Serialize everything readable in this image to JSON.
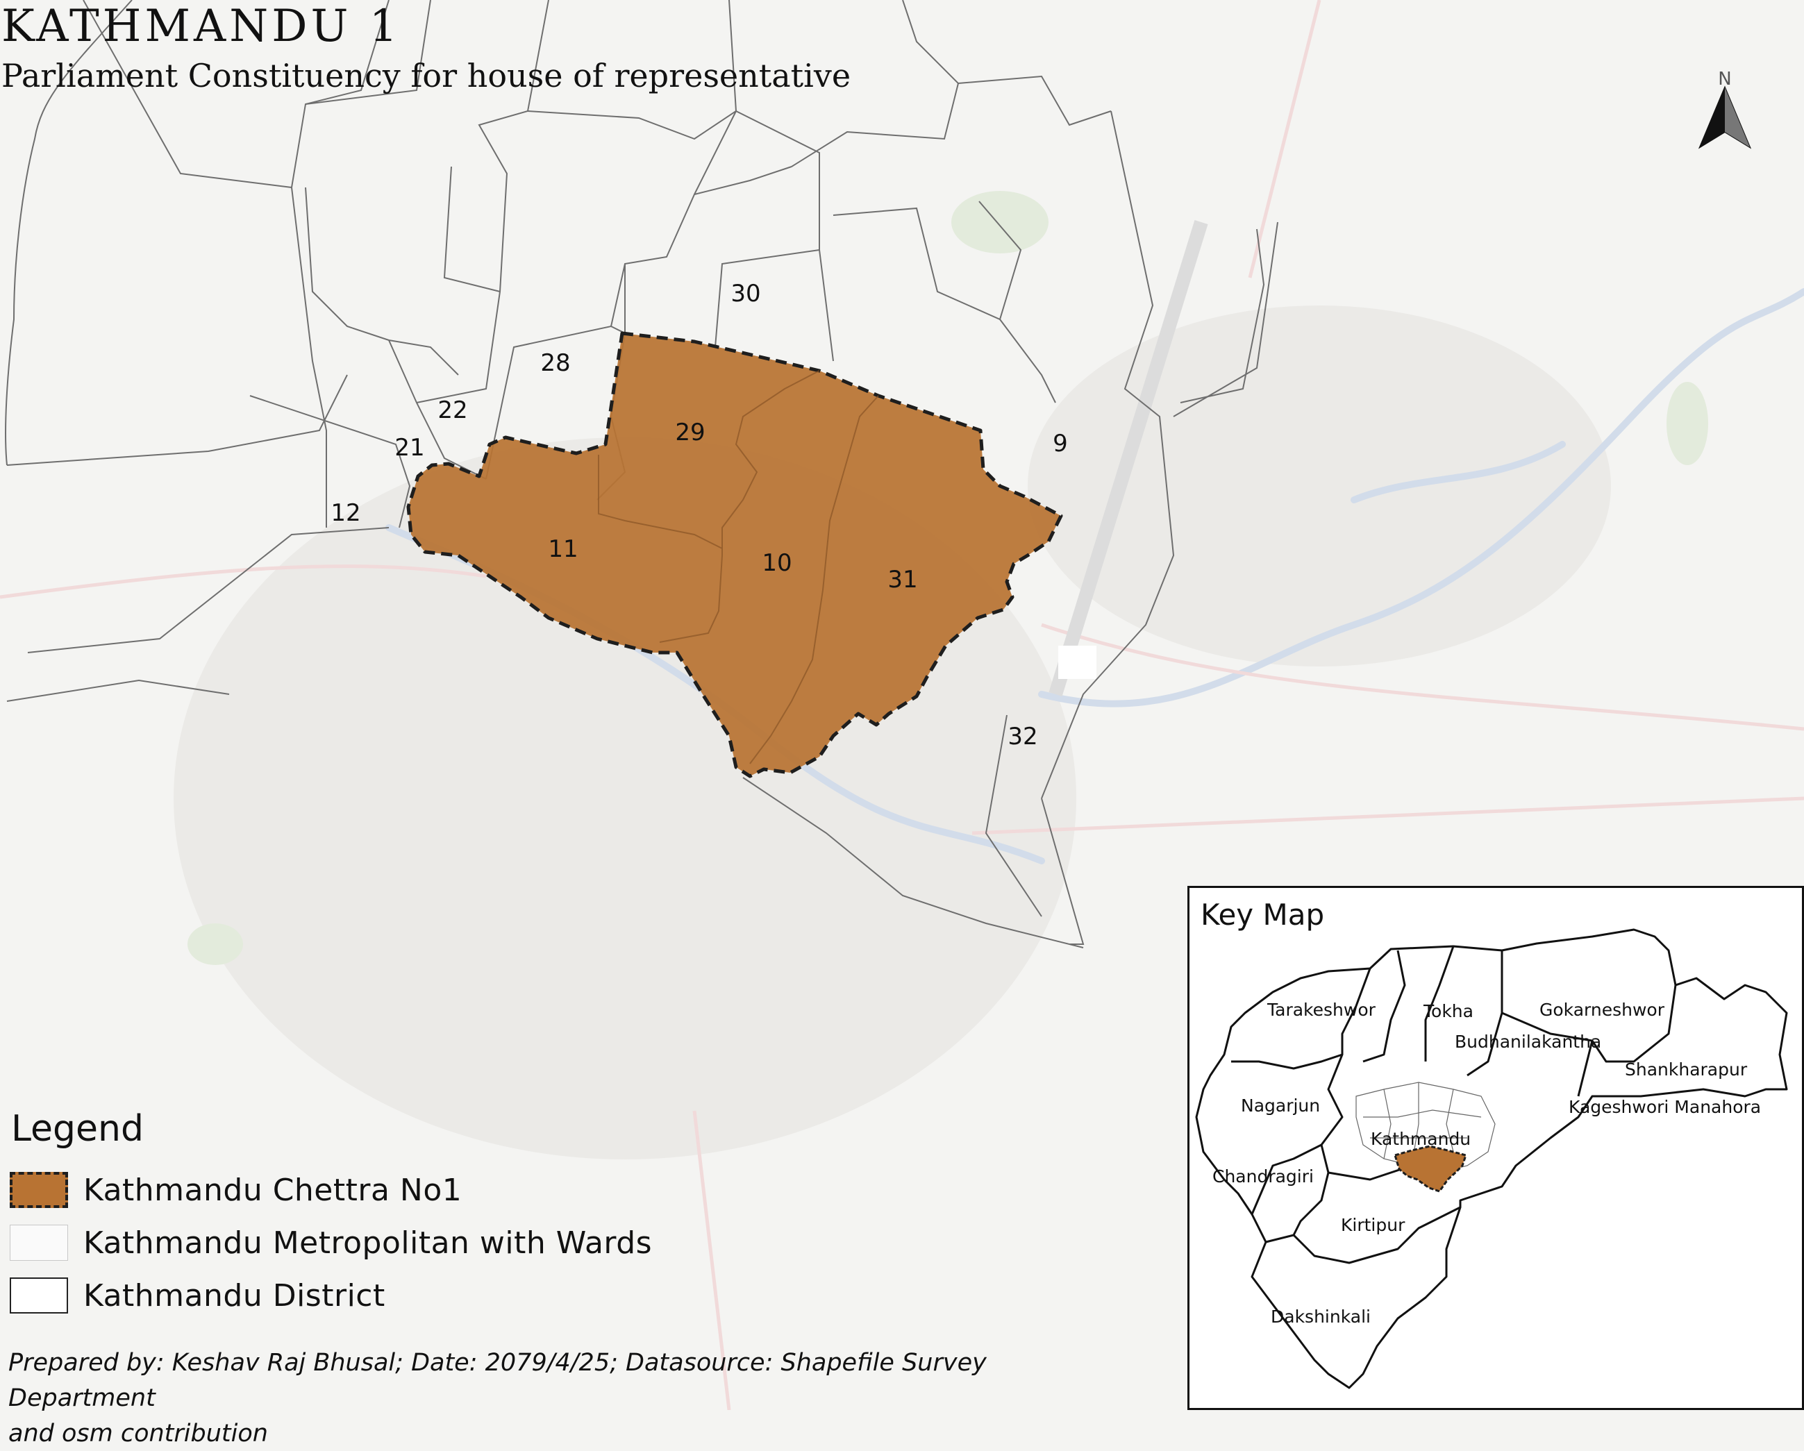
{
  "map": {
    "title": "KATHMANDU 1",
    "subtitle": "Parliament Constituency for house of representative",
    "north_label": "N",
    "colors": {
      "constituency_fill": "#b87333",
      "constituency_border": "#1e1e1e",
      "ward_line": "#6e6e6e",
      "basemap": "#f4f4f2"
    },
    "wards": [
      "30",
      "28",
      "22",
      "21",
      "12",
      "29",
      "9",
      "11",
      "10",
      "31",
      "32"
    ],
    "highlighted_wards": [
      "29",
      "11",
      "10",
      "31"
    ]
  },
  "legend": {
    "title": "Legend",
    "items": [
      {
        "label": "Kathmandu Chettra No1"
      },
      {
        "label": "Kathmandu Metropolitan with Wards"
      },
      {
        "label": "Kathmandu District"
      }
    ]
  },
  "keymap": {
    "title": "Key Map",
    "places": [
      "Tarakeshwor",
      "Tokha",
      "Gokarneshwor",
      "Budhanilakantha",
      "Shankharapur",
      "Nagarjun",
      "Kageshwori Manahora",
      "Kathmandu",
      "Chandragiri",
      "Kirtipur",
      "Dakshinkali"
    ]
  },
  "footer": {
    "line1": "Prepared by: Keshav Raj Bhusal; Date: 2079/4/25; Datasource: Shapefile Survey Department",
    "line2": "and osm contribution"
  }
}
